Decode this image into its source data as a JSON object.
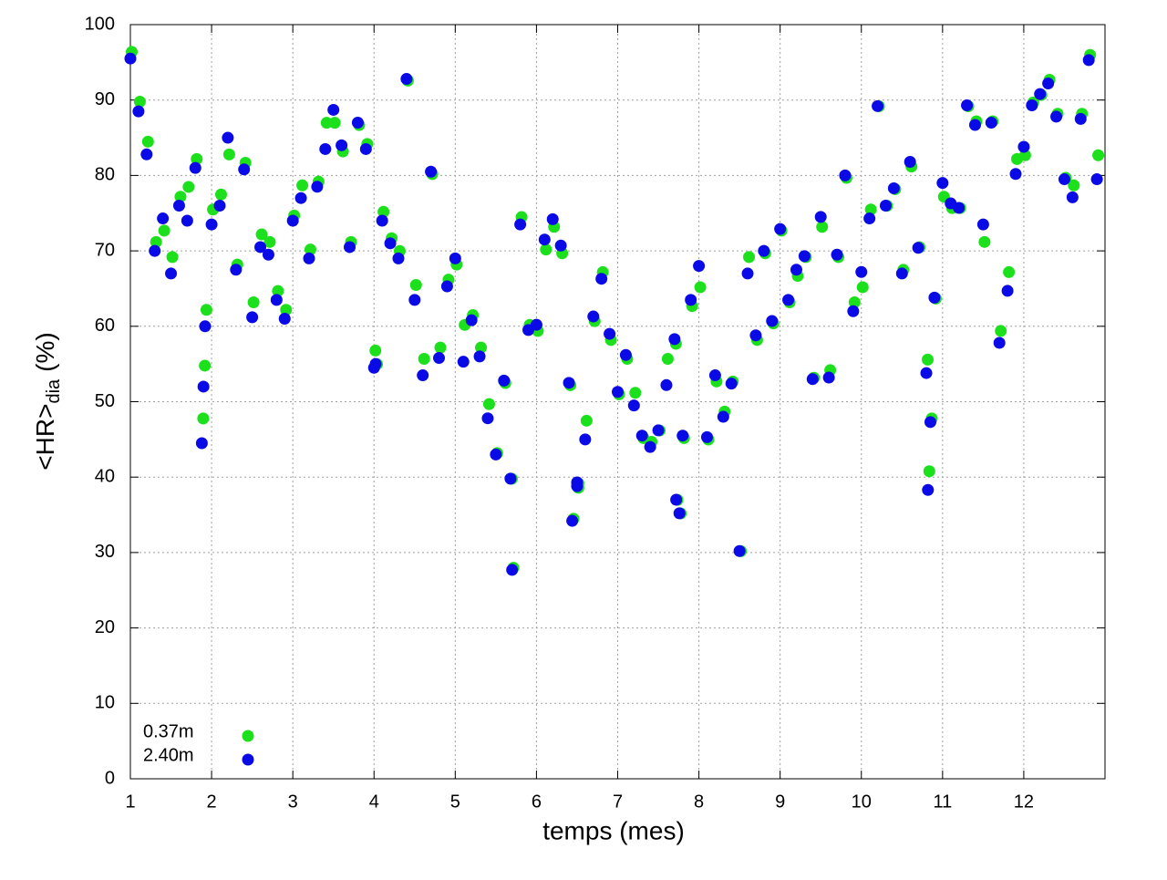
{
  "chart_data": {
    "type": "scatter",
    "xlabel": "temps (mes)",
    "ylabel": "<HR>",
    "ylabel_sub": "dia",
    "ylabel_suffix": "(%)",
    "xlim": [
      1,
      13
    ],
    "ylim": [
      0,
      100
    ],
    "xticks": [
      1,
      2,
      3,
      4,
      5,
      6,
      7,
      8,
      9,
      10,
      11,
      12
    ],
    "yticks": [
      0,
      10,
      20,
      30,
      40,
      50,
      60,
      70,
      80,
      90,
      100
    ],
    "grid": true,
    "legend": "lower left",
    "x": [
      1.0,
      1.1,
      1.2,
      1.3,
      1.4,
      1.5,
      1.6,
      1.7,
      1.8,
      1.9,
      2.0,
      2.1,
      2.2,
      2.3,
      2.4,
      2.5,
      2.6,
      2.7,
      2.8,
      2.9,
      3.0,
      3.1,
      3.2,
      3.3,
      3.4,
      3.5,
      3.6,
      3.7,
      3.8,
      3.9,
      4.0,
      4.1,
      4.2,
      4.3,
      4.4,
      4.5,
      4.6,
      4.7,
      4.8,
      4.9,
      5.0,
      5.1,
      5.2,
      5.3,
      5.4,
      5.5,
      5.6,
      5.7,
      5.8,
      5.9,
      6.0,
      6.1,
      6.2,
      6.3,
      6.4,
      6.5,
      6.6,
      6.7,
      6.8,
      6.9,
      7.0,
      7.1,
      7.2,
      7.3,
      7.4,
      7.5,
      7.6,
      7.7,
      7.8,
      7.9,
      8.0,
      8.1,
      8.2,
      8.3,
      8.4,
      8.5,
      8.6,
      8.7,
      8.8,
      8.9,
      9.0,
      9.1,
      9.2,
      9.3,
      9.4,
      9.5,
      9.6,
      9.7,
      9.8,
      9.9,
      10.0,
      10.1,
      10.2,
      10.3,
      10.4,
      10.5,
      10.6,
      10.7,
      10.8,
      10.9,
      11.0,
      11.1,
      11.2,
      11.3,
      11.4,
      11.5,
      11.6,
      11.7,
      11.8,
      11.9,
      12.0,
      12.1,
      12.2,
      12.3,
      12.4,
      12.5,
      12.6,
      12.7,
      12.8,
      12.9,
      1.88,
      6.44,
      7.72,
      7.76,
      10.82,
      10.85,
      5.68,
      6.5,
      4.02,
      1.92
    ],
    "series": [
      {
        "name": "0.37m",
        "color": "#1be01b",
        "values": [
          96.2,
          89.6,
          84.3,
          71.0,
          72.5,
          69.0,
          77.0,
          78.3,
          82.0,
          54.6,
          75.3,
          77.3,
          82.6,
          68.0,
          81.5,
          63.0,
          72.0,
          71.0,
          64.5,
          62.0,
          74.5,
          78.5,
          70.0,
          79.0,
          86.8,
          86.8,
          83.0,
          71.0,
          86.5,
          84.0,
          56.6,
          75.0,
          71.5,
          69.8,
          92.4,
          65.3,
          55.5,
          80.0,
          57.0,
          66.0,
          68.0,
          60.0,
          61.3,
          57.0,
          49.5,
          43.0,
          52.3,
          27.8,
          74.3,
          60.0,
          59.2,
          70.0,
          73.0,
          69.5,
          52.0,
          38.4,
          47.3,
          60.5,
          67.0,
          58.0,
          50.8,
          55.5,
          51.0,
          45.0,
          44.5,
          46.0,
          55.5,
          57.5,
          45.0,
          62.5,
          65.0,
          44.8,
          52.5,
          48.5,
          52.5,
          30.0,
          69.0,
          58.0,
          69.5,
          60.2,
          72.5,
          63.0,
          66.5,
          69.0,
          53.0,
          73.0,
          54.0,
          69.0,
          79.5,
          63.0,
          65.0,
          75.3,
          89.0,
          75.8,
          78.0,
          67.3,
          81.0,
          70.3,
          55.4,
          63.5,
          77.0,
          75.5,
          75.5,
          89.0,
          87.0,
          71.0,
          87.0,
          59.2,
          67.0,
          82.0,
          82.5,
          89.5,
          90.5,
          92.5,
          88.0,
          79.5,
          78.5,
          88.0,
          95.8,
          82.5,
          47.6,
          34.3,
          36.8,
          35.0,
          40.6,
          47.6,
          39.6,
          39.0,
          54.8,
          62.0
        ]
      },
      {
        "name": "2.40m",
        "color": "#0a0ae6",
        "values": [
          95.5,
          88.5,
          82.8,
          70.0,
          74.3,
          67.0,
          76.0,
          74.0,
          81.0,
          52.0,
          73.5,
          76.0,
          85.0,
          67.5,
          80.8,
          61.2,
          70.5,
          69.5,
          63.5,
          61.0,
          74.0,
          77.0,
          69.0,
          78.5,
          83.5,
          88.7,
          84.0,
          70.5,
          87.0,
          83.5,
          54.5,
          74.0,
          71.0,
          69.0,
          92.8,
          63.5,
          53.5,
          80.5,
          55.8,
          65.3,
          69.0,
          55.3,
          60.8,
          56.0,
          47.8,
          43.0,
          52.8,
          27.7,
          73.5,
          59.5,
          60.2,
          71.5,
          74.2,
          70.7,
          52.5,
          38.8,
          45.0,
          61.3,
          66.3,
          59.0,
          51.3,
          56.2,
          49.5,
          45.5,
          44.0,
          46.2,
          52.2,
          58.3,
          45.5,
          63.5,
          68.0,
          45.3,
          53.5,
          48.0,
          52.4,
          30.2,
          67.0,
          58.8,
          70.0,
          60.7,
          72.9,
          63.5,
          67.5,
          69.3,
          53.0,
          74.5,
          53.2,
          69.5,
          80.0,
          62.0,
          67.2,
          74.3,
          89.2,
          76.0,
          78.3,
          67.0,
          81.8,
          70.4,
          53.8,
          63.8,
          79.0,
          76.3,
          75.7,
          89.3,
          86.7,
          73.5,
          87.0,
          57.8,
          64.7,
          80.2,
          83.8,
          89.3,
          90.8,
          92.2,
          87.8,
          79.5,
          77.1,
          87.5,
          95.3,
          79.5,
          44.5,
          34.2,
          37.0,
          35.2,
          38.3,
          47.3,
          39.8,
          39.3,
          55.0,
          60.0
        ]
      }
    ]
  }
}
